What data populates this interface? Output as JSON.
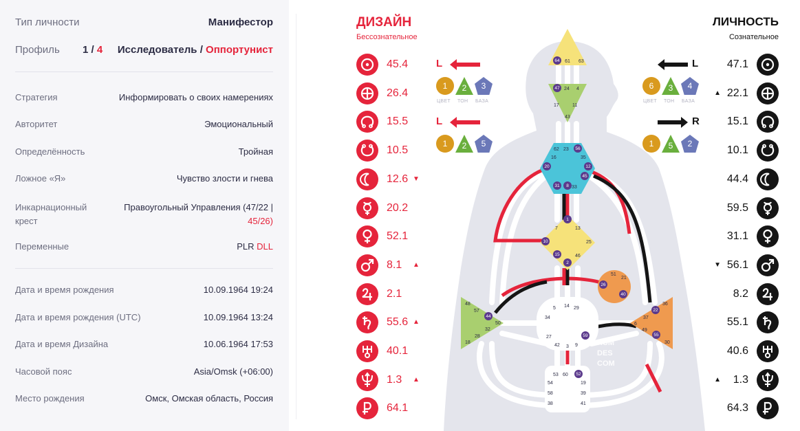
{
  "summary": {
    "type": {
      "label": "Тип личности",
      "value": "Манифестор"
    },
    "profile": {
      "label": "Профиль",
      "line1": "1",
      "sep": " / ",
      "line2": "4",
      "role1": "Исследователь",
      "role_sep": " / ",
      "role2": "Оппортунист"
    }
  },
  "details": [
    {
      "label": "Стратегия",
      "value": "Информировать о своих намерениях"
    },
    {
      "label": "Авторитет",
      "value": "Эмоциональный"
    },
    {
      "label": "Определённость",
      "value": "Тройная"
    },
    {
      "label": "Ложное «Я»",
      "value": "Чувство злости и гнева"
    }
  ],
  "cross": {
    "label1": "Инкарнационный",
    "label2": "крест",
    "value_line1": "Правоугольный Управления (47/22 |",
    "value_line2": "45/26)"
  },
  "variables": {
    "label": "Переменные",
    "value1": "PLR",
    "value2": "DLL"
  },
  "birth": [
    {
      "label": "Дата и время рождения",
      "value": "10.09.1964 19:24"
    },
    {
      "label": "Дата и время рождения (UTC)",
      "value": "10.09.1964 13:24"
    },
    {
      "label": "Дата и время Дизайна",
      "value": "10.06.1964 17:53"
    },
    {
      "label": "Часовой пояс",
      "value": "Asia/Omsk (+06:00)"
    },
    {
      "label": "Место рождения",
      "value": "Омск, Омская область, Россия"
    }
  ],
  "design": {
    "title": "ДИЗАЙН",
    "subtitle": "Бессознательное",
    "color": "#e5243b",
    "planets": [
      {
        "icon": "sun-icon",
        "value": "45.4",
        "arrow": ""
      },
      {
        "icon": "earth-icon",
        "value": "26.4",
        "arrow": ""
      },
      {
        "icon": "north-node-icon",
        "value": "15.5",
        "arrow": ""
      },
      {
        "icon": "south-node-icon",
        "value": "10.5",
        "arrow": ""
      },
      {
        "icon": "moon-icon",
        "value": "12.6",
        "arrow": "▼"
      },
      {
        "icon": "mercury-icon",
        "value": "20.2",
        "arrow": ""
      },
      {
        "icon": "venus-icon",
        "value": "52.1",
        "arrow": ""
      },
      {
        "icon": "mars-icon",
        "value": "8.1",
        "arrow": "▲"
      },
      {
        "icon": "jupiter-icon",
        "value": "2.1",
        "arrow": ""
      },
      {
        "icon": "saturn-icon",
        "value": "55.6",
        "arrow": "▲"
      },
      {
        "icon": "uranus-icon",
        "value": "40.1",
        "arrow": ""
      },
      {
        "icon": "neptune-icon",
        "value": "1.3",
        "arrow": "▲"
      },
      {
        "icon": "pluto-icon",
        "value": "64.1",
        "arrow": ""
      }
    ],
    "var_top": {
      "letter": "L",
      "badges": [
        "1",
        "2",
        "3"
      ],
      "labels": [
        "ЦВЕТ",
        "ТОН",
        "БАЗА"
      ]
    },
    "var_bottom": {
      "letter": "L",
      "badges": [
        "1",
        "2",
        "5"
      ]
    }
  },
  "personality": {
    "title": "ЛИЧНОСТЬ",
    "subtitle": "Сознательное",
    "color": "#151515",
    "planets": [
      {
        "icon": "sun-icon",
        "value": "47.1",
        "arrow": ""
      },
      {
        "icon": "earth-icon",
        "value": "22.1",
        "arrow": "▲"
      },
      {
        "icon": "north-node-icon",
        "value": "15.1",
        "arrow": ""
      },
      {
        "icon": "south-node-icon",
        "value": "10.1",
        "arrow": ""
      },
      {
        "icon": "moon-icon",
        "value": "44.4",
        "arrow": ""
      },
      {
        "icon": "mercury-icon",
        "value": "59.5",
        "arrow": ""
      },
      {
        "icon": "venus-icon",
        "value": "31.1",
        "arrow": ""
      },
      {
        "icon": "mars-icon",
        "value": "56.1",
        "arrow": "▼"
      },
      {
        "icon": "jupiter-icon",
        "value": "8.2",
        "arrow": ""
      },
      {
        "icon": "saturn-icon",
        "value": "55.1",
        "arrow": ""
      },
      {
        "icon": "uranus-icon",
        "value": "40.6",
        "arrow": ""
      },
      {
        "icon": "neptune-icon",
        "value": "1.3",
        "arrow": "▲"
      },
      {
        "icon": "pluto-icon",
        "value": "64.3",
        "arrow": ""
      }
    ],
    "var_top": {
      "letter": "L",
      "badges": [
        "6",
        "3",
        "4"
      ],
      "labels": [
        "ЦВЕТ",
        "ТОН",
        "БАЗА"
      ]
    },
    "var_bottom": {
      "letter": "R",
      "badges": [
        "1",
        "5",
        "2"
      ]
    }
  },
  "badge_colors": {
    "color": "#d99a1e",
    "tone": "#6aaf3d",
    "base": "#6b78b8"
  },
  "bodygraph": {
    "watermark": [
      "HUM",
      "DES",
      "COM"
    ],
    "center_colors": {
      "head": "#f6e27a",
      "ajna": "#a9cf6f",
      "throat": "#4bc4d9",
      "g": "#f6e27a",
      "ego": "#ef9a4f",
      "sacral": "#ffffff",
      "spleen": "#a9cf6f",
      "solar_plexus": "#ef9a4f",
      "root": "#ffffff"
    }
  }
}
